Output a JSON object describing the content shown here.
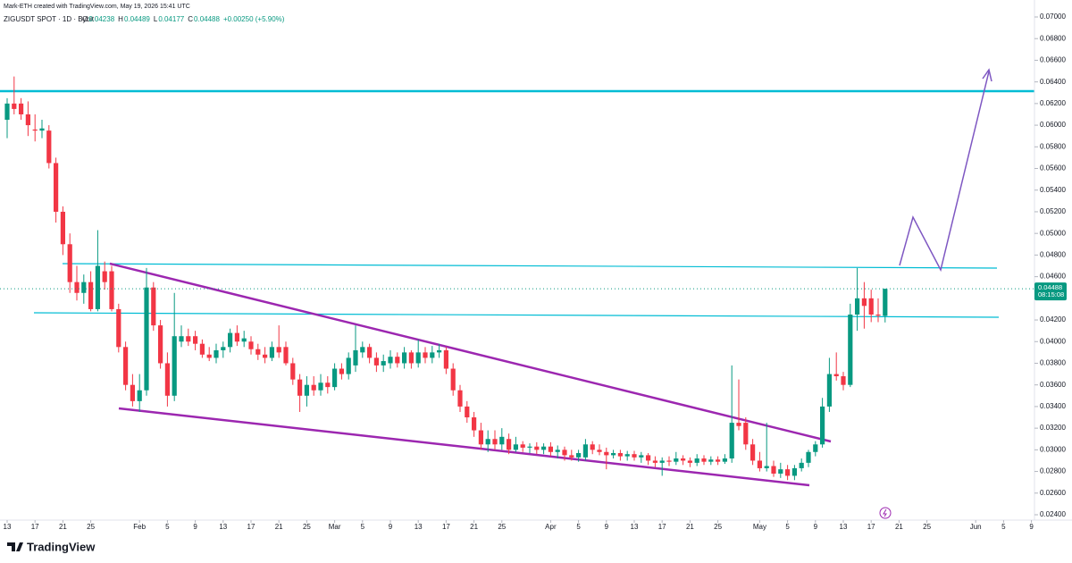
{
  "chart_data": {
    "type": "candlestick",
    "watermark": "Mark-ETH created with TradingView.com, May 19, 2026 15:41 UTC",
    "symbol": "ZIGUSDT SPOT · 1D · Bybit",
    "ohlc_labels": [
      "O",
      "H",
      "L",
      "C"
    ],
    "change": "+0.00250 (+5.90%)",
    "countdown": "08:15:08",
    "logo": "TradingView",
    "up_color": "#089981",
    "down_color": "#f23645",
    "ylim": [
      0.024,
      0.07
    ],
    "yticks": [
      {
        "value": 0.07,
        "label": "0.07000"
      },
      {
        "value": 0.068,
        "label": "0.06800"
      },
      {
        "value": 0.066,
        "label": "0.06600"
      },
      {
        "value": 0.064,
        "label": "0.06400"
      },
      {
        "value": 0.062,
        "label": "0.06200"
      },
      {
        "value": 0.06,
        "label": "0.06000"
      },
      {
        "value": 0.058,
        "label": "0.05800"
      },
      {
        "value": 0.056,
        "label": "0.05600"
      },
      {
        "value": 0.054,
        "label": "0.05400"
      },
      {
        "value": 0.052,
        "label": "0.05200"
      },
      {
        "value": 0.05,
        "label": "0.05000"
      },
      {
        "value": 0.048,
        "label": "0.04800"
      },
      {
        "value": 0.046,
        "label": "0.04600"
      },
      {
        "value": 0.044,
        "label": "0.04400"
      },
      {
        "value": 0.042,
        "label": "0.04200"
      },
      {
        "value": 0.04,
        "label": "0.04000"
      },
      {
        "value": 0.038,
        "label": "0.03800"
      },
      {
        "value": 0.036,
        "label": "0.03600"
      },
      {
        "value": 0.034,
        "label": "0.03400"
      },
      {
        "value": 0.032,
        "label": "0.03200"
      },
      {
        "value": 0.03,
        "label": "0.03000"
      },
      {
        "value": 0.028,
        "label": "0.02800"
      },
      {
        "value": 0.026,
        "label": "0.02600"
      },
      {
        "value": 0.024,
        "label": "0.02400"
      }
    ],
    "xticks": [
      {
        "value": "2026-01-13",
        "label": "13"
      },
      {
        "value": "2026-01-17",
        "label": "17"
      },
      {
        "value": "2026-01-21",
        "label": "21"
      },
      {
        "value": "2026-01-25",
        "label": "25"
      },
      {
        "value": "2026-02-01",
        "label": "Feb"
      },
      {
        "value": "2026-02-05",
        "label": "5"
      },
      {
        "value": "2026-02-09",
        "label": "9"
      },
      {
        "value": "2026-02-13",
        "label": "13"
      },
      {
        "value": "2026-02-17",
        "label": "17"
      },
      {
        "value": "2026-02-21",
        "label": "21"
      },
      {
        "value": "2026-02-25",
        "label": "25"
      },
      {
        "value": "2026-03-01",
        "label": "Mar"
      },
      {
        "value": "2026-03-05",
        "label": "5"
      },
      {
        "value": "2026-03-09",
        "label": "9"
      },
      {
        "value": "2026-03-13",
        "label": "13"
      },
      {
        "value": "2026-03-17",
        "label": "17"
      },
      {
        "value": "2026-03-21",
        "label": "21"
      },
      {
        "value": "2026-03-25",
        "label": "25"
      },
      {
        "value": "2026-04-01",
        "label": "Apr"
      },
      {
        "value": "2026-04-05",
        "label": "5"
      },
      {
        "value": "2026-04-09",
        "label": "9"
      },
      {
        "value": "2026-04-13",
        "label": "13"
      },
      {
        "value": "2026-04-17",
        "label": "17"
      },
      {
        "value": "2026-04-21",
        "label": "21"
      },
      {
        "value": "2026-04-25",
        "label": "25"
      },
      {
        "value": "2026-05-01",
        "label": "May"
      },
      {
        "value": "2026-05-05",
        "label": "5"
      },
      {
        "value": "2026-05-09",
        "label": "9"
      },
      {
        "value": "2026-05-13",
        "label": "13"
      },
      {
        "value": "2026-05-17",
        "label": "17"
      },
      {
        "value": "2026-05-21",
        "label": "21"
      },
      {
        "value": "2026-05-25",
        "label": "25"
      },
      {
        "value": "2026-06-01",
        "label": "Jun"
      },
      {
        "value": "2026-06-05",
        "label": "5"
      },
      {
        "value": "2026-06-09",
        "label": "9"
      }
    ],
    "candles": [
      [
        "2026-01-13",
        0.0605,
        0.0625,
        0.0588,
        0.062
      ],
      [
        "2026-01-14",
        0.062,
        0.0645,
        0.061,
        0.0615
      ],
      [
        "2026-01-15",
        0.062,
        0.0625,
        0.0605,
        0.061
      ],
      [
        "2026-01-16",
        0.061,
        0.0622,
        0.059,
        0.06
      ],
      [
        "2026-01-17",
        0.0596,
        0.061,
        0.0585,
        0.0595
      ],
      [
        "2026-01-18",
        0.0595,
        0.0605,
        0.0588,
        0.0597
      ],
      [
        "2026-01-19",
        0.0595,
        0.06,
        0.056,
        0.0565
      ],
      [
        "2026-01-20",
        0.0565,
        0.057,
        0.051,
        0.052
      ],
      [
        "2026-01-21",
        0.052,
        0.0525,
        0.048,
        0.049
      ],
      [
        "2026-01-22",
        0.049,
        0.05,
        0.0445,
        0.0455
      ],
      [
        "2026-01-23",
        0.0455,
        0.047,
        0.0438,
        0.0445
      ],
      [
        "2026-01-24",
        0.0445,
        0.0462,
        0.0435,
        0.0455
      ],
      [
        "2026-01-25",
        0.0455,
        0.0465,
        0.0428,
        0.043
      ],
      [
        "2026-01-26",
        0.043,
        0.0503,
        0.0428,
        0.047
      ],
      [
        "2026-01-27",
        0.0465,
        0.0474,
        0.0448,
        0.0455
      ],
      [
        "2026-01-28",
        0.0465,
        0.047,
        0.0428,
        0.043
      ],
      [
        "2026-01-29",
        0.043,
        0.0435,
        0.039,
        0.0395
      ],
      [
        "2026-01-30",
        0.0395,
        0.04,
        0.0355,
        0.036
      ],
      [
        "2026-01-31",
        0.036,
        0.037,
        0.034,
        0.0345
      ],
      [
        "2026-02-01",
        0.0345,
        0.037,
        0.0335,
        0.0355
      ],
      [
        "2026-02-02",
        0.0355,
        0.0468,
        0.035,
        0.045
      ],
      [
        "2026-02-03",
        0.045,
        0.0455,
        0.041,
        0.0415
      ],
      [
        "2026-02-04",
        0.0415,
        0.042,
        0.0375,
        0.038
      ],
      [
        "2026-02-05",
        0.038,
        0.039,
        0.034,
        0.035
      ],
      [
        "2026-02-06",
        0.035,
        0.0445,
        0.0345,
        0.0405
      ],
      [
        "2026-02-07",
        0.04,
        0.0415,
        0.0395,
        0.0405
      ],
      [
        "2026-02-08",
        0.0405,
        0.0412,
        0.0396,
        0.04
      ],
      [
        "2026-02-09",
        0.0405,
        0.041,
        0.0392,
        0.0398
      ],
      [
        "2026-02-10",
        0.0398,
        0.0402,
        0.0385,
        0.0388
      ],
      [
        "2026-02-11",
        0.0388,
        0.0395,
        0.0382,
        0.0385
      ],
      [
        "2026-02-12",
        0.0385,
        0.0398,
        0.038,
        0.0392
      ],
      [
        "2026-02-13",
        0.0392,
        0.04,
        0.0385,
        0.0395
      ],
      [
        "2026-02-14",
        0.0395,
        0.0412,
        0.039,
        0.0408
      ],
      [
        "2026-02-15",
        0.0408,
        0.0415,
        0.0396,
        0.04
      ],
      [
        "2026-02-16",
        0.04,
        0.041,
        0.0395,
        0.0403
      ],
      [
        "2026-02-17",
        0.04,
        0.0405,
        0.0388,
        0.0393
      ],
      [
        "2026-02-18",
        0.0393,
        0.0398,
        0.0383,
        0.0388
      ],
      [
        "2026-02-19",
        0.0388,
        0.0395,
        0.038,
        0.0385
      ],
      [
        "2026-02-20",
        0.0385,
        0.04,
        0.0382,
        0.0395
      ],
      [
        "2026-02-21",
        0.0395,
        0.0415,
        0.0385,
        0.039
      ],
      [
        "2026-02-22",
        0.0395,
        0.04,
        0.0378,
        0.038
      ],
      [
        "2026-02-23",
        0.038,
        0.0385,
        0.036,
        0.0365
      ],
      [
        "2026-02-24",
        0.0365,
        0.037,
        0.0335,
        0.035
      ],
      [
        "2026-02-25",
        0.035,
        0.0368,
        0.034,
        0.036
      ],
      [
        "2026-02-26",
        0.036,
        0.0368,
        0.035,
        0.0355
      ],
      [
        "2026-02-27",
        0.0355,
        0.037,
        0.035,
        0.0362
      ],
      [
        "2026-02-28",
        0.0362,
        0.0368,
        0.0352,
        0.0358
      ],
      [
        "2026-03-01",
        0.0358,
        0.038,
        0.0355,
        0.0375
      ],
      [
        "2026-03-02",
        0.0375,
        0.038,
        0.0365,
        0.037
      ],
      [
        "2026-03-03",
        0.037,
        0.039,
        0.0365,
        0.0385
      ],
      [
        "2026-03-04",
        0.0378,
        0.0415,
        0.0372,
        0.0392
      ],
      [
        "2026-03-05",
        0.039,
        0.04,
        0.0385,
        0.0395
      ],
      [
        "2026-03-06",
        0.0395,
        0.0398,
        0.038,
        0.0385
      ],
      [
        "2026-03-07",
        0.0385,
        0.039,
        0.0372,
        0.0378
      ],
      [
        "2026-03-08",
        0.0378,
        0.0388,
        0.0372,
        0.0382
      ],
      [
        "2026-03-09",
        0.038,
        0.0392,
        0.0375,
        0.0386
      ],
      [
        "2026-03-10",
        0.0386,
        0.039,
        0.0376,
        0.038
      ],
      [
        "2026-03-11",
        0.038,
        0.0395,
        0.0375,
        0.039
      ],
      [
        "2026-03-12",
        0.039,
        0.0392,
        0.0375,
        0.038
      ],
      [
        "2026-03-13",
        0.038,
        0.0402,
        0.0376,
        0.039
      ],
      [
        "2026-03-14",
        0.039,
        0.0395,
        0.038,
        0.0385
      ],
      [
        "2026-03-15",
        0.0385,
        0.0396,
        0.038,
        0.039
      ],
      [
        "2026-03-16",
        0.039,
        0.0398,
        0.0385,
        0.0392
      ],
      [
        "2026-03-17",
        0.0392,
        0.0395,
        0.037,
        0.0375
      ],
      [
        "2026-03-18",
        0.0375,
        0.038,
        0.035,
        0.0355
      ],
      [
        "2026-03-19",
        0.0355,
        0.036,
        0.0335,
        0.034
      ],
      [
        "2026-03-20",
        0.034,
        0.0345,
        0.0325,
        0.033
      ],
      [
        "2026-03-21",
        0.033,
        0.0335,
        0.0312,
        0.0318
      ],
      [
        "2026-03-22",
        0.0318,
        0.0325,
        0.03,
        0.0305
      ],
      [
        "2026-03-23",
        0.0305,
        0.0318,
        0.0298,
        0.031
      ],
      [
        "2026-03-24",
        0.031,
        0.0318,
        0.03,
        0.0305
      ],
      [
        "2026-03-25",
        0.0305,
        0.032,
        0.03,
        0.0312
      ],
      [
        "2026-03-26",
        0.031,
        0.0315,
        0.0296,
        0.03
      ],
      [
        "2026-03-27",
        0.03,
        0.0312,
        0.0298,
        0.0305
      ],
      [
        "2026-03-28",
        0.0305,
        0.0308,
        0.0298,
        0.0302
      ],
      [
        "2026-03-29",
        0.0302,
        0.0306,
        0.0297,
        0.0303
      ],
      [
        "2026-03-30",
        0.0303,
        0.0307,
        0.0296,
        0.03
      ],
      [
        "2026-03-31",
        0.03,
        0.0306,
        0.0296,
        0.0303
      ],
      [
        "2026-04-01",
        0.0303,
        0.0307,
        0.0294,
        0.0298
      ],
      [
        "2026-04-02",
        0.0298,
        0.0304,
        0.0292,
        0.03
      ],
      [
        "2026-04-03",
        0.03,
        0.0303,
        0.029,
        0.0295
      ],
      [
        "2026-04-04",
        0.0295,
        0.03,
        0.029,
        0.0293
      ],
      [
        "2026-04-05",
        0.0293,
        0.03,
        0.0289,
        0.0297
      ],
      [
        "2026-04-06",
        0.0293,
        0.031,
        0.029,
        0.0305
      ],
      [
        "2026-04-07",
        0.0305,
        0.0308,
        0.0296,
        0.03
      ],
      [
        "2026-04-08",
        0.03,
        0.0305,
        0.0295,
        0.0298
      ],
      [
        "2026-04-09",
        0.0298,
        0.0302,
        0.0282,
        0.0295
      ],
      [
        "2026-04-10",
        0.0295,
        0.03,
        0.0292,
        0.0297
      ],
      [
        "2026-04-11",
        0.0297,
        0.03,
        0.029,
        0.0294
      ],
      [
        "2026-04-12",
        0.0294,
        0.0299,
        0.029,
        0.0296
      ],
      [
        "2026-04-13",
        0.0296,
        0.0299,
        0.029,
        0.0293
      ],
      [
        "2026-04-14",
        0.0293,
        0.0298,
        0.0288,
        0.0295
      ],
      [
        "2026-04-15",
        0.0295,
        0.0297,
        0.0286,
        0.029
      ],
      [
        "2026-04-16",
        0.029,
        0.0294,
        0.0284,
        0.0288
      ],
      [
        "2026-04-17",
        0.0288,
        0.0293,
        0.0276,
        0.029
      ],
      [
        "2026-04-18",
        0.029,
        0.0294,
        0.0285,
        0.0289
      ],
      [
        "2026-04-19",
        0.0289,
        0.0298,
        0.0286,
        0.0292
      ],
      [
        "2026-04-20",
        0.0292,
        0.0295,
        0.0286,
        0.029
      ],
      [
        "2026-04-21",
        0.029,
        0.0293,
        0.0284,
        0.0288
      ],
      [
        "2026-04-22",
        0.0288,
        0.0296,
        0.0285,
        0.0292
      ],
      [
        "2026-04-23",
        0.0292,
        0.0295,
        0.0286,
        0.0289
      ],
      [
        "2026-04-24",
        0.0289,
        0.0294,
        0.0286,
        0.0291
      ],
      [
        "2026-04-25",
        0.0291,
        0.0294,
        0.0286,
        0.0289
      ],
      [
        "2026-04-26",
        0.0289,
        0.0296,
        0.0287,
        0.0292
      ],
      [
        "2026-04-27",
        0.0292,
        0.0378,
        0.0288,
        0.0325
      ],
      [
        "2026-04-28",
        0.0325,
        0.0365,
        0.0318,
        0.0322
      ],
      [
        "2026-04-29",
        0.0325,
        0.033,
        0.03,
        0.0305
      ],
      [
        "2026-04-30",
        0.0305,
        0.031,
        0.0286,
        0.029
      ],
      [
        "2026-05-01",
        0.029,
        0.0298,
        0.028,
        0.0283
      ],
      [
        "2026-05-02",
        0.0283,
        0.0325,
        0.028,
        0.0285
      ],
      [
        "2026-05-03",
        0.0285,
        0.029,
        0.0275,
        0.0278
      ],
      [
        "2026-05-04",
        0.0278,
        0.0288,
        0.0274,
        0.0282
      ],
      [
        "2026-05-05",
        0.0282,
        0.0286,
        0.0272,
        0.0276
      ],
      [
        "2026-05-06",
        0.0276,
        0.0286,
        0.0272,
        0.0283
      ],
      [
        "2026-05-07",
        0.0283,
        0.0292,
        0.028,
        0.0288
      ],
      [
        "2026-05-08",
        0.0288,
        0.03,
        0.0284,
        0.0298
      ],
      [
        "2026-05-09",
        0.0298,
        0.0308,
        0.0294,
        0.0305
      ],
      [
        "2026-05-10",
        0.0305,
        0.0348,
        0.0302,
        0.034
      ],
      [
        "2026-05-11",
        0.034,
        0.0385,
        0.0335,
        0.037
      ],
      [
        "2026-05-12",
        0.037,
        0.039,
        0.0364,
        0.0368
      ],
      [
        "2026-05-13",
        0.0368,
        0.0372,
        0.0355,
        0.036
      ],
      [
        "2026-05-14",
        0.036,
        0.0435,
        0.0358,
        0.0425
      ],
      [
        "2026-05-15",
        0.0425,
        0.0468,
        0.041,
        0.044
      ],
      [
        "2026-05-16",
        0.044,
        0.0455,
        0.0412,
        0.0433
      ],
      [
        "2026-05-17",
        0.044,
        0.0448,
        0.0418,
        0.0425
      ],
      [
        "2026-05-18",
        0.0425,
        0.044,
        0.0418,
        0.0424
      ],
      [
        "2026-05-19",
        0.04238,
        0.04489,
        0.04177,
        0.04488
      ]
    ]
  }
}
